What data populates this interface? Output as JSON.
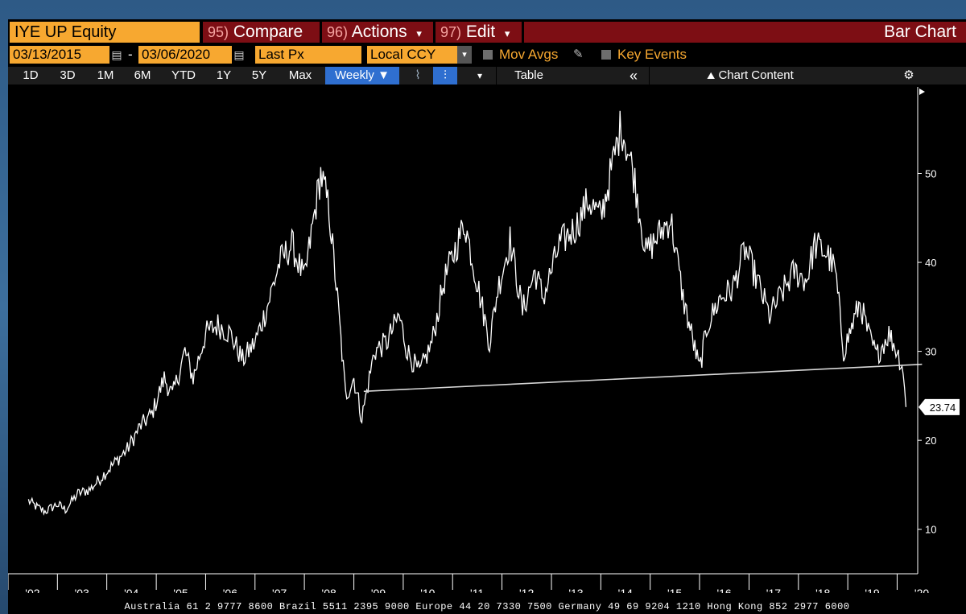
{
  "header": {
    "ticker": "IYE UP Equity",
    "compare": {
      "num": "95)",
      "label": "Compare"
    },
    "actions": {
      "num": "96)",
      "label": "Actions",
      "caret": "▾"
    },
    "edit": {
      "num": "97)",
      "label": "Edit",
      "caret": "▾"
    },
    "chart_type": "Bar Chart"
  },
  "controls": {
    "start_date": "03/13/2015",
    "end_date": "03/06/2020",
    "date_separator": "-",
    "calendar_glyph": "▤",
    "field": "Last Px",
    "currency": "Local CCY",
    "dropdown_glyph": "▾",
    "mov_avgs": "Mov Avgs",
    "key_events": "Key Events"
  },
  "toolbar": {
    "ranges": [
      "1D",
      "3D",
      "1M",
      "6M",
      "YTD",
      "1Y",
      "5Y",
      "Max"
    ],
    "frequency": "Weekly",
    "frequency_caret": "▼",
    "table": "Table",
    "collapse": "«",
    "chart_content": "Chart Content",
    "chart_content_icon": "⛰",
    "settings_icon": "⚙",
    "line_icon": "⌇",
    "bar_icon": "⫶",
    "more_icon": "▾"
  },
  "chart_data": {
    "type": "line",
    "series": [
      {
        "points": [
          [
            "2002-06-01",
            13.2
          ],
          [
            "2002-08-01",
            12.5
          ],
          [
            "2002-10-01",
            12.0
          ],
          [
            "2003-01-01",
            12.8
          ],
          [
            "2003-03-01",
            12.2
          ],
          [
            "2003-06-01",
            14.0
          ],
          [
            "2003-09-01",
            14.5
          ],
          [
            "2003-12-01",
            16.0
          ],
          [
            "2004-03-01",
            17.5
          ],
          [
            "2004-06-01",
            19.0
          ],
          [
            "2004-09-01",
            21.5
          ],
          [
            "2004-12-01",
            23.0
          ],
          [
            "2005-03-01",
            27.0
          ],
          [
            "2005-05-01",
            25.0
          ],
          [
            "2005-08-01",
            30.0
          ],
          [
            "2005-10-01",
            27.0
          ],
          [
            "2006-01-01",
            32.0
          ],
          [
            "2006-04-01",
            33.0
          ],
          [
            "2006-07-01",
            32.0
          ],
          [
            "2006-10-01",
            29.0
          ],
          [
            "2007-01-01",
            31.0
          ],
          [
            "2007-04-01",
            35.0
          ],
          [
            "2007-07-01",
            40.0
          ],
          [
            "2007-10-01",
            42.0
          ],
          [
            "2008-01-01",
            38.0
          ],
          [
            "2008-03-01",
            44.0
          ],
          [
            "2008-05-01",
            50.0
          ],
          [
            "2008-07-01",
            46.0
          ],
          [
            "2008-09-01",
            36.0
          ],
          [
            "2008-11-01",
            25.0
          ],
          [
            "2009-01-01",
            27.0
          ],
          [
            "2009-03-01",
            22.5
          ],
          [
            "2009-06-01",
            30.0
          ],
          [
            "2009-09-01",
            31.0
          ],
          [
            "2009-12-01",
            34.0
          ],
          [
            "2010-02-01",
            30.0
          ],
          [
            "2010-05-01",
            27.5
          ],
          [
            "2010-08-01",
            31.0
          ],
          [
            "2010-11-01",
            38.0
          ],
          [
            "2011-04-01",
            44.5
          ],
          [
            "2011-06-01",
            40.0
          ],
          [
            "2011-10-01",
            31.0
          ],
          [
            "2011-12-01",
            37.0
          ],
          [
            "2012-03-01",
            42.5
          ],
          [
            "2012-06-01",
            34.5
          ],
          [
            "2012-09-01",
            39.0
          ],
          [
            "2012-11-01",
            36.0
          ],
          [
            "2013-03-01",
            42.0
          ],
          [
            "2013-07-01",
            44.0
          ],
          [
            "2013-10-01",
            47.0
          ],
          [
            "2014-01-01",
            45.0
          ],
          [
            "2014-03-01",
            49.0
          ],
          [
            "2014-06-01",
            55.5
          ],
          [
            "2014-09-01",
            50.0
          ],
          [
            "2014-12-01",
            41.0
          ],
          [
            "2015-03-01",
            43.0
          ],
          [
            "2015-06-01",
            45.0
          ],
          [
            "2015-09-01",
            36.0
          ],
          [
            "2016-01-01",
            28.0
          ],
          [
            "2016-03-01",
            33.0
          ],
          [
            "2016-06-01",
            36.0
          ],
          [
            "2016-09-01",
            37.0
          ],
          [
            "2016-12-01",
            41.5
          ],
          [
            "2017-03-01",
            38.0
          ],
          [
            "2017-06-01",
            34.0
          ],
          [
            "2017-09-01",
            36.5
          ],
          [
            "2017-12-01",
            39.0
          ],
          [
            "2018-03-01",
            38.0
          ],
          [
            "2018-05-01",
            42.0
          ],
          [
            "2018-08-01",
            41.0
          ],
          [
            "2018-10-01",
            39.0
          ],
          [
            "2018-12-01",
            30.0
          ],
          [
            "2019-04-01",
            35.5
          ],
          [
            "2019-06-01",
            32.0
          ],
          [
            "2019-08-01",
            29.5
          ],
          [
            "2019-11-01",
            32.0
          ],
          [
            "2020-01-01",
            30.0
          ],
          [
            "2020-02-15",
            28.0
          ],
          [
            "2020-03-06",
            23.74
          ]
        ]
      }
    ],
    "support_line": {
      "start": [
        "2009-03-15",
        25.5
      ],
      "end": [
        "2020-03-06",
        28.5
      ]
    },
    "last_value": "23.74",
    "y_ticks": [
      10,
      20,
      30,
      40,
      50
    ],
    "y_range": [
      5,
      59
    ],
    "x_ticks": [
      "'02",
      "'03",
      "'04",
      "'05",
      "'06",
      "'07",
      "'08",
      "'09",
      "'10",
      "'11",
      "'12",
      "'13",
      "'14",
      "'15",
      "'16",
      "'17",
      "'18",
      "'19",
      "'20"
    ],
    "x_range": [
      "2002-01-01",
      "2020-06-01"
    ],
    "axis_position": "right",
    "grid": false
  },
  "footer": "Australia 61 2 9777 8600 Brazil 5511 2395 9000 Europe 44 20 7330 7500 Germany 49 69 9204 1210 Hong Kong 852 2977 6000"
}
